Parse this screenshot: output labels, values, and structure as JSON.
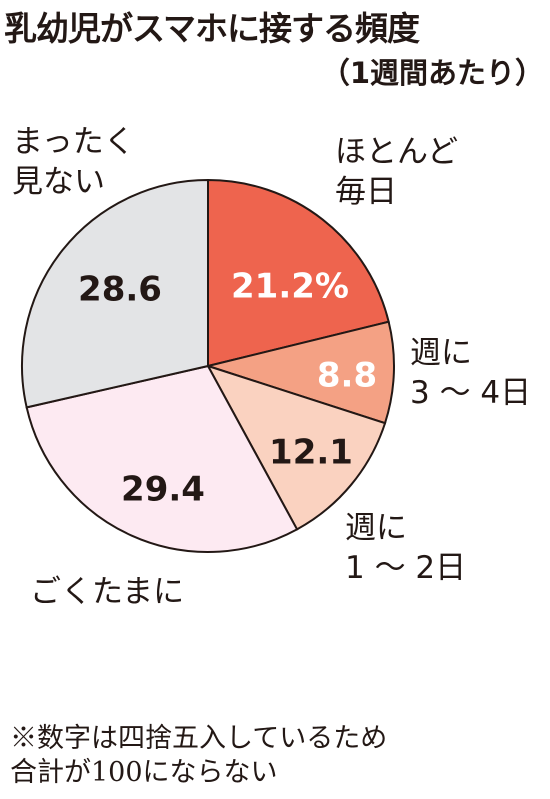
{
  "chart_data": {
    "type": "pie",
    "title": "乳幼児がスマホに接する頻度",
    "subtitle": "（1週間あたり）",
    "categories": [
      "ほとんど\n毎日",
      "週に\n3 〜 4日",
      "週に\n1 〜 2日",
      "ごくたまに",
      "まったく\n見ない"
    ],
    "values": [
      21.2,
      8.8,
      12.1,
      29.4,
      28.6
    ],
    "value_labels": [
      "21.2%",
      "8.8",
      "12.1",
      "29.4",
      "28.6"
    ],
    "colors": [
      "#ee644e",
      "#f4a184",
      "#fad2c0",
      "#fdeaf2",
      "#e3e4e6"
    ],
    "note": "※数字は四捨五入しているため\n合計が100にならない"
  }
}
